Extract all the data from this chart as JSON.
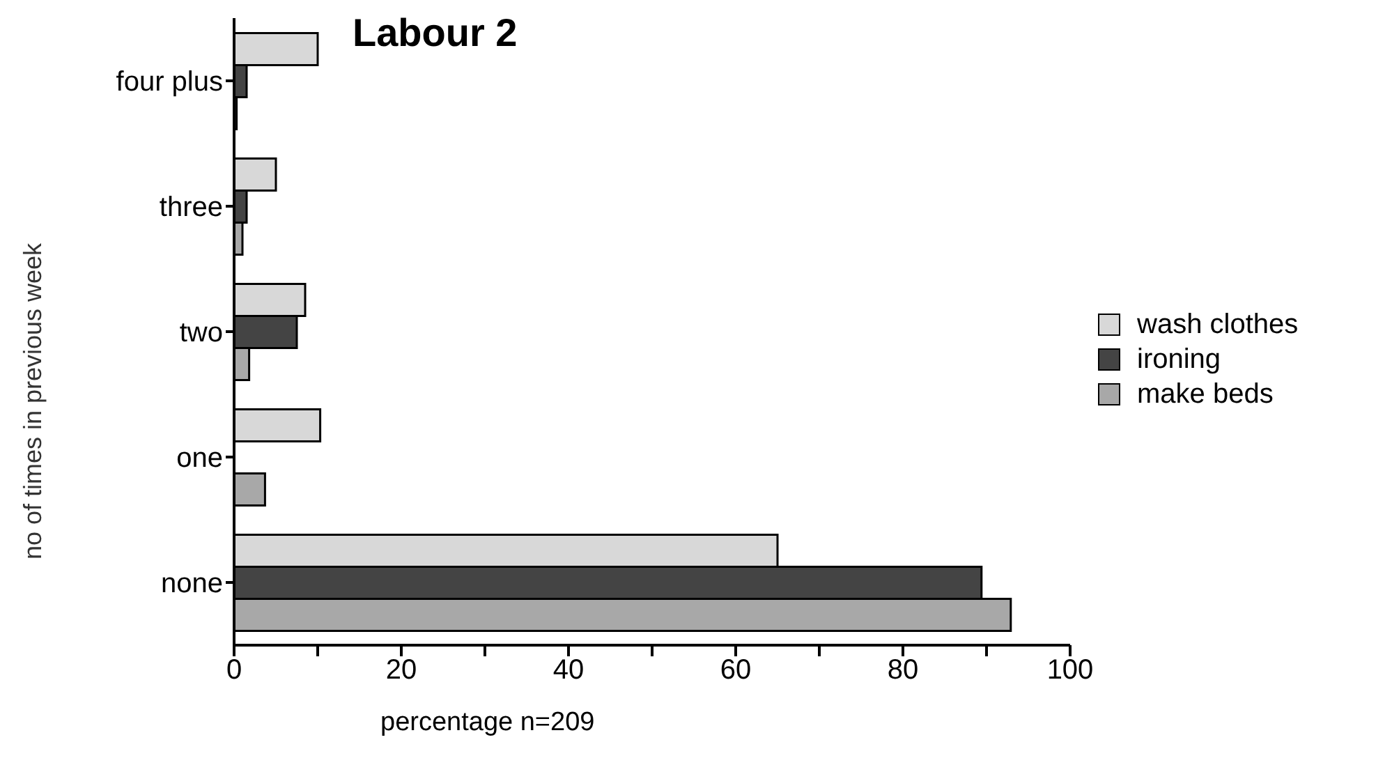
{
  "chart_data": {
    "type": "bar",
    "orientation": "horizontal",
    "title": "Labour 2",
    "xlabel": "percentage  n=209",
    "ylabel": "no of times in previous week",
    "categories": [
      "four plus",
      "three",
      "two",
      "one",
      "none"
    ],
    "series": [
      {
        "name": "wash clothes",
        "color": "#d8d8d8",
        "values": [
          10,
          5,
          8.5,
          10.3,
          65
        ]
      },
      {
        "name": "ironing",
        "color": "#444444",
        "values": [
          1.5,
          1.5,
          7.5,
          0,
          89.4
        ]
      },
      {
        "name": "make beds",
        "color": "#a8a8a8",
        "values": [
          0.3,
          1,
          1.8,
          3.7,
          92.9
        ]
      }
    ],
    "xlim": [
      0,
      100
    ],
    "xticks": [
      0,
      {
        "value": 10,
        "label": null
      },
      20,
      {
        "value": 30,
        "label": null
      },
      40,
      {
        "value": 50,
        "label": null
      },
      60,
      {
        "value": 70,
        "label": null
      },
      80,
      {
        "value": 90,
        "label": null
      },
      100
    ],
    "grid": false,
    "legend": "right"
  }
}
